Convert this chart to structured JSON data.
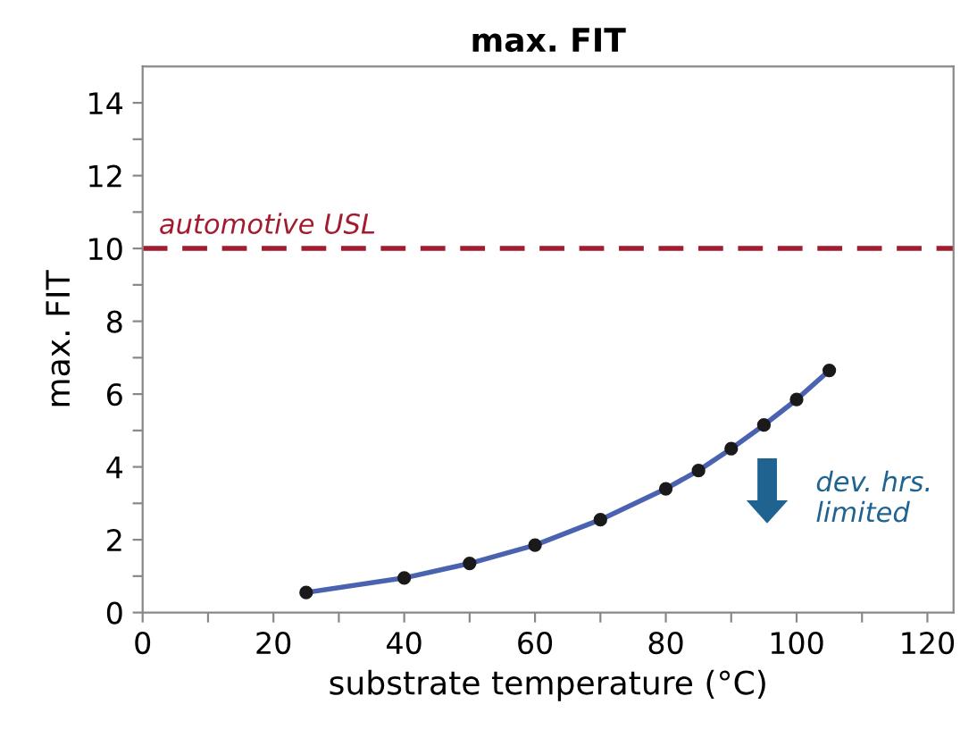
{
  "chart_data": {
    "type": "line",
    "title": "max. FIT",
    "xlabel": "substrate temperature (°C)",
    "ylabel": "max. FIT",
    "x": [
      25,
      40,
      50,
      60,
      70,
      80,
      85,
      90,
      95,
      100,
      105
    ],
    "series": [
      {
        "color": "#4a62b0",
        "values": [
          0.55,
          0.95,
          1.35,
          1.85,
          2.55,
          3.4,
          3.9,
          4.5,
          5.15,
          5.85,
          6.65
        ]
      }
    ],
    "marker": "circle",
    "line_style": "solid",
    "grid": false,
    "xlim": [
      0,
      124
    ],
    "xticks": [
      0,
      {
        "value": 10,
        "label": null
      },
      20,
      {
        "value": 30,
        "label": null
      },
      40,
      {
        "value": 50,
        "label": null
      },
      60,
      {
        "value": 70,
        "label": null
      },
      80,
      {
        "value": 90,
        "label": null
      },
      100,
      {
        "value": 110,
        "label": null
      },
      120
    ],
    "ylim": [
      0,
      15
    ],
    "yticks": [
      0,
      {
        "value": 1,
        "label": null
      },
      2,
      {
        "value": 3,
        "label": null
      },
      4,
      {
        "value": 5,
        "label": null
      },
      6,
      {
        "value": 7,
        "label": null
      },
      8,
      {
        "value": 9,
        "label": null
      },
      10,
      {
        "value": 11,
        "label": null
      },
      12,
      {
        "value": 13,
        "label": null
      },
      14
    ],
    "ref_lines": [
      {
        "axis": "y",
        "value": 10,
        "label": "automotive USL",
        "color": "#a31b2e",
        "line_style": "dashed"
      }
    ],
    "annotations": [
      "dev. hrs. limited"
    ]
  }
}
